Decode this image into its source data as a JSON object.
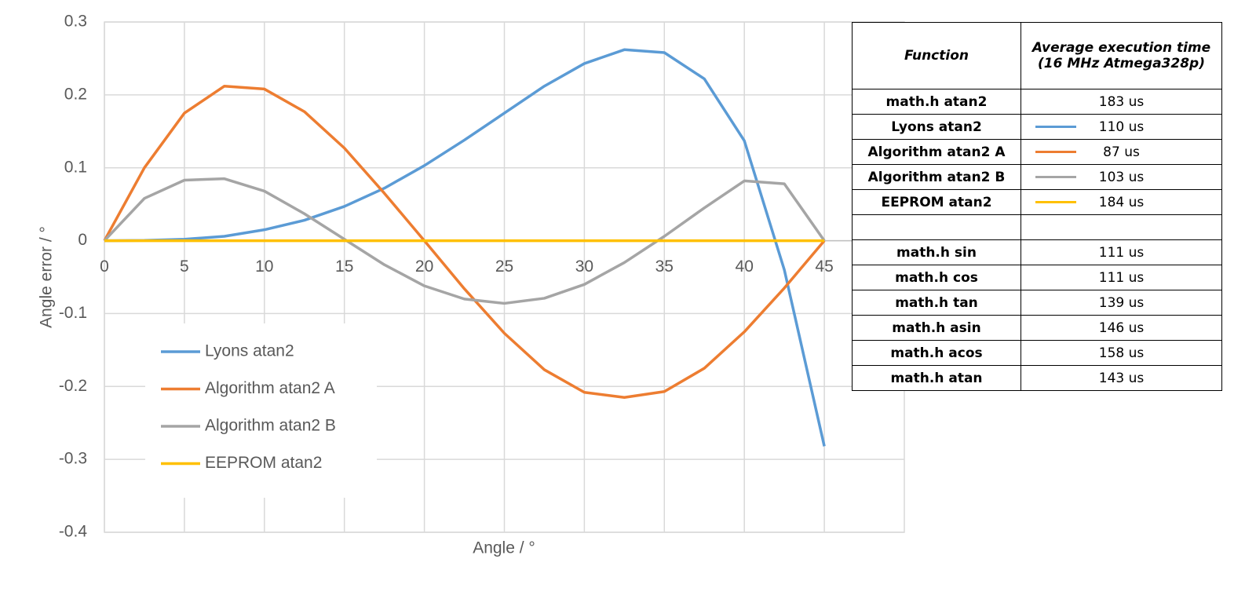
{
  "chart_data": {
    "type": "line",
    "x_label": "Angle / °",
    "y_label": "Angle error / °",
    "x": [
      0,
      2.5,
      5,
      7.5,
      10,
      12.5,
      15,
      17.5,
      20,
      22.5,
      25,
      27.5,
      30,
      32.5,
      35,
      37.5,
      40,
      42.5,
      45
    ],
    "series": [
      {
        "name": "Lyons atan2",
        "color": "#5b9bd5",
        "values": [
          0,
          0.0003,
          0.002,
          0.006,
          0.015,
          0.028,
          0.047,
          0.072,
          0.103,
          0.138,
          0.175,
          0.212,
          0.243,
          0.262,
          0.258,
          0.222,
          0.137,
          -0.04,
          -0.282
        ]
      },
      {
        "name": "Algorithm atan2 A",
        "color": "#ed7d31",
        "values": [
          0,
          0.1,
          0.175,
          0.212,
          0.208,
          0.177,
          0.127,
          0.065,
          0,
          -0.066,
          -0.127,
          -0.177,
          -0.208,
          -0.215,
          -0.207,
          -0.175,
          -0.125,
          -0.065,
          0
        ]
      },
      {
        "name": "Algorithm atan2 B",
        "color": "#a5a5a5",
        "values": [
          0,
          0.058,
          0.083,
          0.085,
          0.068,
          0.037,
          0.002,
          -0.033,
          -0.062,
          -0.08,
          -0.086,
          -0.079,
          -0.06,
          -0.03,
          0.006,
          0.045,
          0.082,
          0.078,
          0
        ]
      },
      {
        "name": "EEPROM atan2",
        "color": "#ffc000",
        "values": [
          0,
          0,
          0,
          0,
          0,
          0,
          0,
          0,
          0,
          0,
          0,
          0,
          0,
          0,
          0,
          0,
          0,
          0,
          0
        ]
      }
    ],
    "xlim": [
      0,
      50
    ],
    "xticks": [
      0,
      5,
      10,
      15,
      20,
      25,
      30,
      35,
      40,
      45
    ],
    "ylim": [
      -0.4,
      0.3
    ],
    "yticks": [
      -0.4,
      -0.3,
      -0.2,
      -0.1,
      0,
      0.1,
      0.2,
      0.3
    ],
    "grid": true
  },
  "table": {
    "header": [
      "Function",
      "Average execution time",
      "(16 MHz Atmega328p)"
    ],
    "rows_atan2": [
      {
        "function": "math.h atan2",
        "time": "183 us"
      },
      {
        "function": "Lyons atan2",
        "time": "110 us",
        "line_color": "#5b9bd5"
      },
      {
        "function": "Algorithm atan2 A",
        "time": "87 us",
        "line_color": "#ed7d31"
      },
      {
        "function": "Algorithm atan2 B",
        "time": "103 us",
        "line_color": "#a5a5a5"
      },
      {
        "function": "EEPROM atan2",
        "time": "184 us",
        "line_color": "#ffc000"
      }
    ],
    "rows_trig": [
      {
        "function": "math.h sin",
        "time": "111 us"
      },
      {
        "function": "math.h cos",
        "time": "111 us"
      },
      {
        "function": "math.h tan",
        "time": "139 us"
      },
      {
        "function": "math.h asin",
        "time": "146 us"
      },
      {
        "function": "math.h acos",
        "time": "158 us"
      },
      {
        "function": "math.h atan",
        "time": "143 us"
      }
    ]
  }
}
